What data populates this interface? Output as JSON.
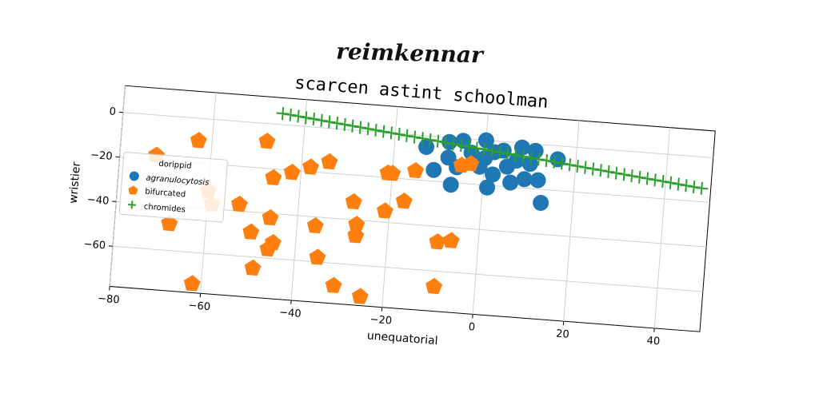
{
  "header": {
    "title": "reimkennar"
  },
  "chart_data": {
    "type": "scatter",
    "title": "scarcen astint schoolman",
    "xlabel": "unequatorial",
    "ylabel": "wristier",
    "xlim": [
      -80,
      50
    ],
    "ylim": [
      -78,
      12
    ],
    "xticks": [
      -80,
      -60,
      -40,
      -20,
      0,
      20,
      40
    ],
    "yticks": [
      0,
      -20,
      -40,
      -60
    ],
    "grid": true,
    "legend": {
      "title": "dorippid",
      "placement": "center-left"
    },
    "series": [
      {
        "name": "agranulocytosis",
        "marker": "circle",
        "color": "#1f77b4",
        "points": [
          [
            -13,
            -5
          ],
          [
            -11,
            -15
          ],
          [
            -8,
            -9
          ],
          [
            -8,
            -2
          ],
          [
            -7,
            -21
          ],
          [
            -6,
            -13
          ],
          [
            -5,
            -1
          ],
          [
            -3,
            -6
          ],
          [
            -1,
            -12
          ],
          [
            0,
            0
          ],
          [
            0,
            -8
          ],
          [
            1,
            -21
          ],
          [
            2,
            -15
          ],
          [
            2,
            -5
          ],
          [
            4,
            -4
          ],
          [
            5,
            -11
          ],
          [
            6,
            -18
          ],
          [
            7,
            -8
          ],
          [
            8,
            -2
          ],
          [
            9,
            -16
          ],
          [
            10,
            -9
          ],
          [
            11,
            -3
          ],
          [
            12,
            -16
          ],
          [
            13,
            -26
          ],
          [
            16,
            -6
          ]
        ]
      },
      {
        "name": "bifurcated",
        "marker": "pentagon",
        "color": "#ff7f0e",
        "points": [
          [
            -72,
            -18
          ],
          [
            -68,
            -48
          ],
          [
            -63,
            -10
          ],
          [
            -62,
            -74
          ],
          [
            -60,
            -32
          ],
          [
            -59,
            -38
          ],
          [
            -53,
            -37
          ],
          [
            -50,
            -49
          ],
          [
            -49,
            -65
          ],
          [
            -48,
            -8
          ],
          [
            -46,
            -24
          ],
          [
            -46,
            -56
          ],
          [
            -46,
            -42
          ],
          [
            -45,
            -53
          ],
          [
            -42,
            -21
          ],
          [
            -38,
            -18
          ],
          [
            -36,
            -44
          ],
          [
            -35,
            -58
          ],
          [
            -34,
            -15
          ],
          [
            -31,
            -70
          ],
          [
            -28,
            -32
          ],
          [
            -27,
            -47
          ],
          [
            -27,
            -42
          ],
          [
            -25,
            -74
          ],
          [
            -21,
            -18
          ],
          [
            -21,
            -35
          ],
          [
            -20,
            -18
          ],
          [
            -17,
            -30
          ],
          [
            -15,
            -16
          ],
          [
            -9,
            -47
          ],
          [
            -9,
            -67
          ],
          [
            -6,
            -46
          ],
          [
            -5,
            -12
          ],
          [
            -3,
            -11
          ]
        ]
      },
      {
        "name": "chromides",
        "marker": "plus",
        "color": "#2ca02c",
        "line": {
          "x0": -45,
          "y0": 5,
          "x1": 48,
          "y1": -14,
          "count": 55
        }
      }
    ]
  }
}
